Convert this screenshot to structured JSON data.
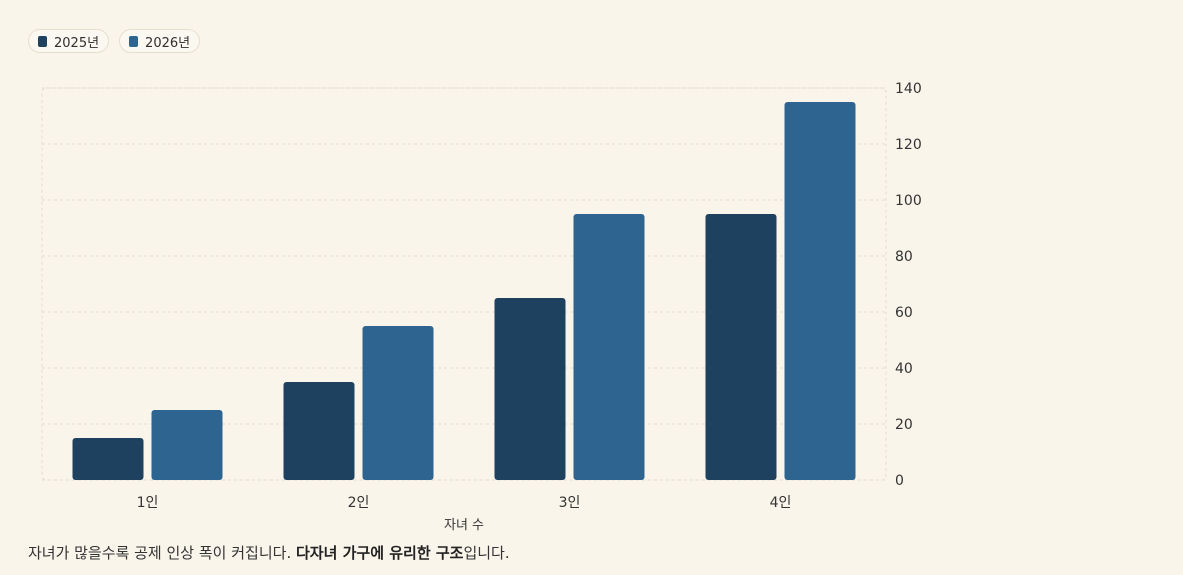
{
  "colors": {
    "series_2025": "#1e4160",
    "series_2026": "#2e6490",
    "grid": "#e3ddcc",
    "text": "#333333"
  },
  "legend": {
    "items": [
      {
        "label": "2025년",
        "color": "#1e4160"
      },
      {
        "label": "2026년",
        "color": "#2e6490"
      }
    ]
  },
  "caption": {
    "text_before": "자녀가 많을수록 공제 인상 폭이 커집니다. ",
    "emphasis": "다자녀 가구에 유리한 구조",
    "text_after": "입니다."
  },
  "chart_data": {
    "type": "bar",
    "categories": [
      "1인",
      "2인",
      "3인",
      "4인"
    ],
    "series": [
      {
        "name": "2025년",
        "values": [
          15,
          35,
          65,
          95
        ]
      },
      {
        "name": "2026년",
        "values": [
          25,
          55,
          95,
          135
        ]
      }
    ],
    "xlabel": "자녀 수",
    "ylabel": "",
    "ylim": [
      0,
      140
    ],
    "yticks": [
      0,
      20,
      40,
      60,
      80,
      100,
      120,
      140
    ],
    "y_axis_position": "right",
    "grid": true,
    "legend_position": "top-left"
  }
}
